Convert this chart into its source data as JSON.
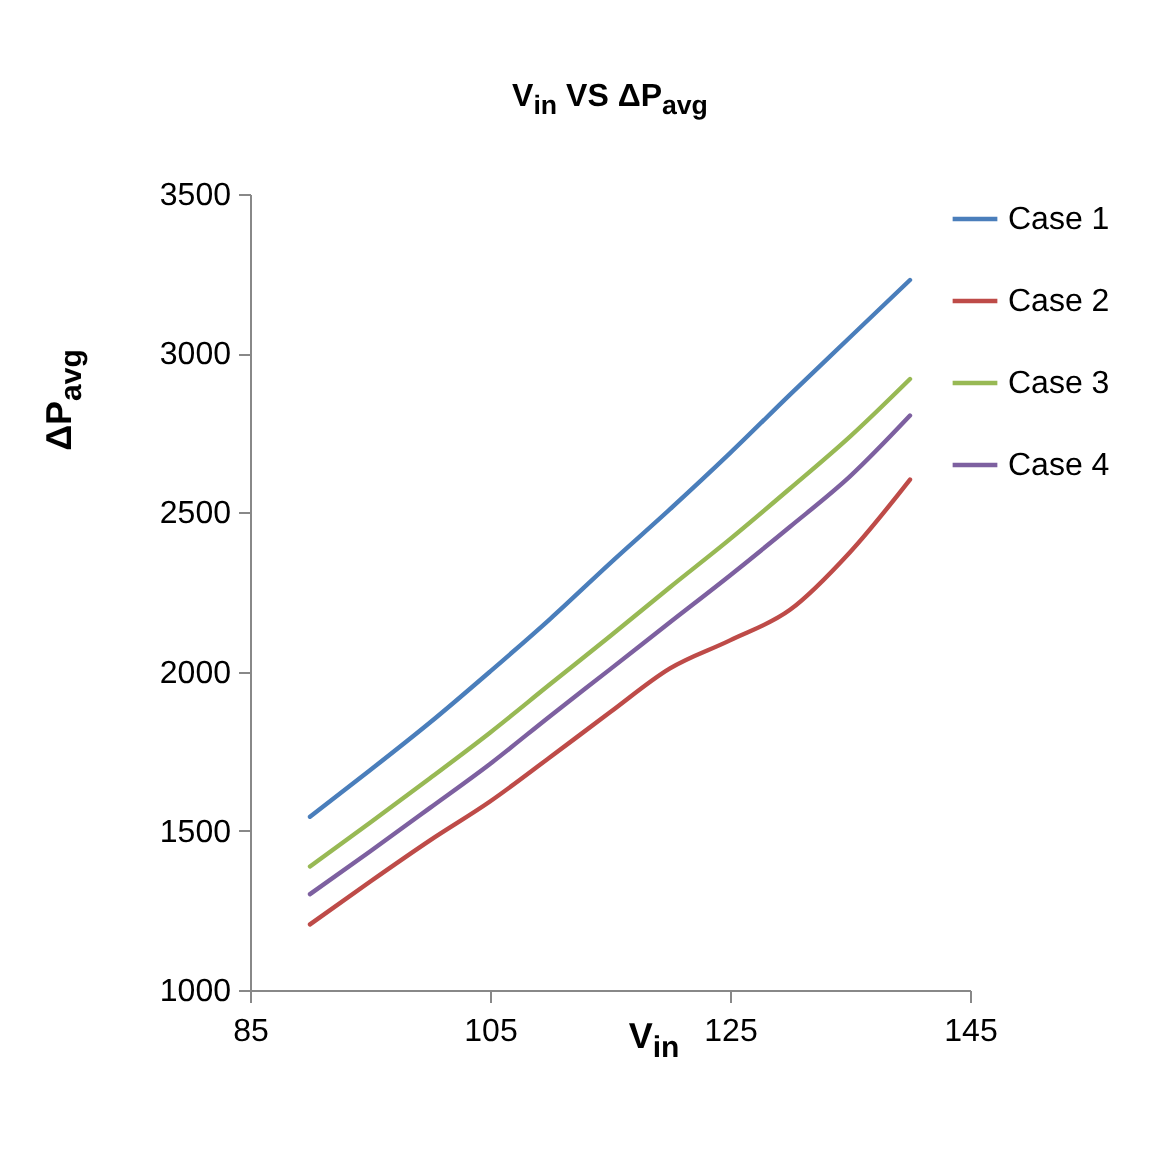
{
  "chart_data": {
    "type": "line",
    "title": "V$_{in}$  VS  ΔP$_{avg}$",
    "xlabel": "V$_{in}$",
    "ylabel": "ΔP$_{avg}$",
    "x": [
      90,
      95,
      100,
      105,
      110,
      115,
      120,
      125,
      130,
      135,
      140
    ],
    "series": [
      {
        "name": "Case 1",
        "color": "#4a7ebb",
        "values": [
          1544,
          1690,
          1840,
          2000,
          2165,
          2340,
          2510,
          2686,
          2870,
          3050,
          3230
        ]
      },
      {
        "name": "Case 2",
        "color": "#be4b48",
        "values": [
          1206,
          1340,
          1470,
          1592,
          1731,
          1872,
          2010,
          2098,
          2194,
          2375,
          2603
        ]
      },
      {
        "name": "Case 3",
        "color": "#98b954",
        "values": [
          1388,
          1525,
          1665,
          1808,
          1960,
          2111,
          2265,
          2416,
          2575,
          2738,
          2919
        ]
      },
      {
        "name": "Case 4",
        "color": "#7d60a0",
        "values": [
          1301,
          1435,
          1572,
          1710,
          1860,
          2007,
          2155,
          2302,
          2455,
          2613,
          2804
        ]
      }
    ],
    "xlim": [
      85,
      145
    ],
    "xticks": [
      85,
      105,
      125,
      145
    ],
    "ylim": [
      1000,
      3500
    ],
    "yticks": [
      1000,
      1500,
      2000,
      2500,
      3000,
      3500
    ],
    "grid": false,
    "legend": "right",
    "marker": "none",
    "line_style": "solid"
  }
}
